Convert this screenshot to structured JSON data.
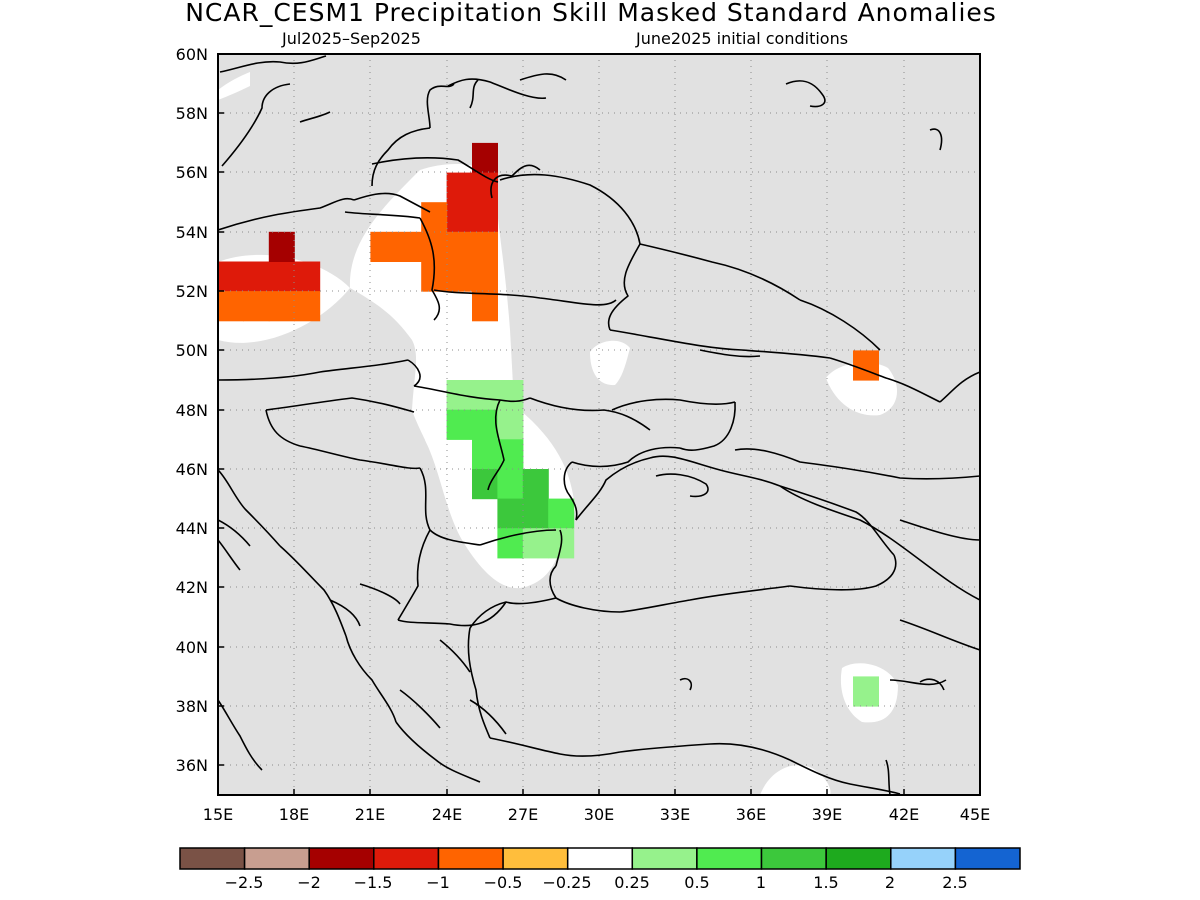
{
  "title": "NCAR_CESM1 Precipitation Skill Masked Standard Anomalies",
  "subtitle_left": "Jul2025–Sep2025",
  "subtitle_right": "June2025 initial conditions",
  "chart_data": {
    "type": "heatmap",
    "projection": "lat-lon",
    "variable": "precipitation standard anomaly (skill masked)",
    "lon_range": [
      15,
      45
    ],
    "lat_range": [
      35,
      60
    ],
    "background": "masked (no skill) shown in light grey",
    "lon_ticks": [
      "15E",
      "18E",
      "21E",
      "24E",
      "27E",
      "30E",
      "33E",
      "36E",
      "39E",
      "42E",
      "45E"
    ],
    "lat_ticks": [
      "60N",
      "58N",
      "56N",
      "54N",
      "52N",
      "50N",
      "48N",
      "46N",
      "44N",
      "42N",
      "40N",
      "38N",
      "36N"
    ],
    "grid": "dotted",
    "colorbar": {
      "labels": [
        "−2.5",
        "−2",
        "−1.5",
        "−1",
        "−0.5",
        "−0.25",
        "0.25",
        "0.5",
        "1",
        "1.5",
        "2",
        "2.5"
      ],
      "colors": [
        "#7a5246",
        "#c89e90",
        "#a50000",
        "#de1a0a",
        "#ff6400",
        "#ffbe3c",
        "#ffffff",
        "#96f28c",
        "#50eb50",
        "#3cc83c",
        "#1eaa1e",
        "#96d2fa",
        "#1464d2"
      ]
    },
    "cells": [
      {
        "lon": 15,
        "lat": 52,
        "value": -1
      },
      {
        "lon": 16,
        "lat": 52,
        "value": -1
      },
      {
        "lon": 17,
        "lat": 52,
        "value": -1
      },
      {
        "lon": 18,
        "lat": 52,
        "value": -1
      },
      {
        "lon": 17,
        "lat": 53,
        "value": -1.5
      },
      {
        "lon": 17,
        "lat": 51,
        "value": -0.5
      },
      {
        "lon": 15,
        "lat": 51,
        "value": -0.5
      },
      {
        "lon": 16,
        "lat": 51,
        "value": -0.5
      },
      {
        "lon": 18,
        "lat": 51,
        "value": -0.5
      },
      {
        "lon": 25,
        "lat": 56,
        "value": -1.5
      },
      {
        "lon": 24,
        "lat": 55,
        "value": -1
      },
      {
        "lon": 25,
        "lat": 55,
        "value": -1
      },
      {
        "lon": 24,
        "lat": 54,
        "value": -1
      },
      {
        "lon": 25,
        "lat": 54,
        "value": -1
      },
      {
        "lon": 23,
        "lat": 54,
        "value": -0.5
      },
      {
        "lon": 21,
        "lat": 53,
        "value": -0.5
      },
      {
        "lon": 22,
        "lat": 53,
        "value": -0.5
      },
      {
        "lon": 23,
        "lat": 53,
        "value": -0.5
      },
      {
        "lon": 24,
        "lat": 53,
        "value": -0.5
      },
      {
        "lon": 25,
        "lat": 53,
        "value": -0.5
      },
      {
        "lon": 23,
        "lat": 52,
        "value": -0.5
      },
      {
        "lon": 24,
        "lat": 52,
        "value": -0.5
      },
      {
        "lon": 25,
        "lat": 52,
        "value": -0.5
      },
      {
        "lon": 25,
        "lat": 51,
        "value": -0.5
      },
      {
        "lon": 40,
        "lat": 49,
        "value": -0.5
      },
      {
        "lon": 24,
        "lat": 48,
        "value": 0.5
      },
      {
        "lon": 25,
        "lat": 48,
        "value": 0.5
      },
      {
        "lon": 26,
        "lat": 48,
        "value": 0.5
      },
      {
        "lon": 24,
        "lat": 47,
        "value": 1
      },
      {
        "lon": 25,
        "lat": 47,
        "value": 1
      },
      {
        "lon": 26,
        "lat": 47,
        "value": 0.5
      },
      {
        "lon": 25,
        "lat": 46,
        "value": 1
      },
      {
        "lon": 26,
        "lat": 46,
        "value": 1
      },
      {
        "lon": 25,
        "lat": 45,
        "value": 1.5
      },
      {
        "lon": 26,
        "lat": 45,
        "value": 1
      },
      {
        "lon": 27,
        "lat": 45,
        "value": 1.5
      },
      {
        "lon": 26,
        "lat": 44,
        "value": 1.5
      },
      {
        "lon": 27,
        "lat": 44,
        "value": 1.5
      },
      {
        "lon": 28,
        "lat": 44,
        "value": 1
      },
      {
        "lon": 26,
        "lat": 43,
        "value": 1
      },
      {
        "lon": 27,
        "lat": 43,
        "value": 0.5
      },
      {
        "lon": 28,
        "lat": 43,
        "value": 0.5
      },
      {
        "lon": 40,
        "lat": 38,
        "value": 0.5
      }
    ]
  }
}
